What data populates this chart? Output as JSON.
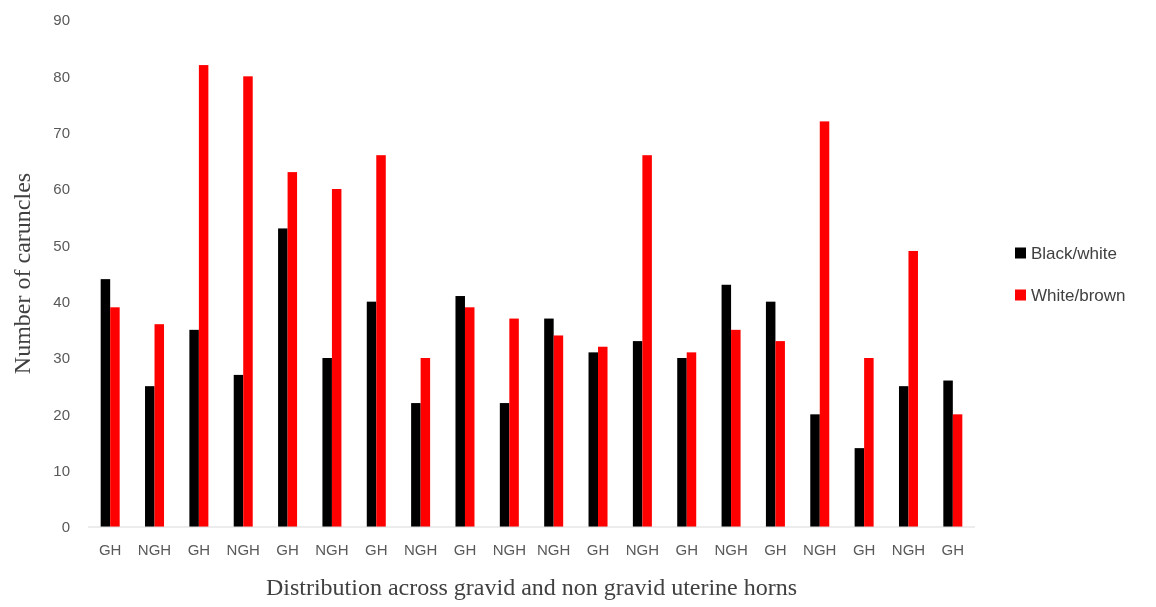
{
  "chart_data": {
    "type": "bar",
    "xlabel": "Distribution across gravid and non gravid uterine horns",
    "ylabel": "Number of caruncles",
    "categories": [
      "GH",
      "NGH",
      "GH",
      "NGH",
      "GH",
      "NGH",
      "GH",
      "NGH",
      "GH",
      "NGH",
      "NGH",
      "GH",
      "NGH",
      "GH",
      "NGH",
      "GH",
      "NGH",
      "GH",
      "NGH",
      "GH"
    ],
    "series": [
      {
        "name": "Black/white",
        "color": "#000000",
        "values": [
          44,
          25,
          35,
          27,
          53,
          30,
          40,
          22,
          41,
          22,
          37,
          31,
          33,
          30,
          43,
          40,
          20,
          14,
          25,
          26
        ]
      },
      {
        "name": "White/brown",
        "color": "#ff0000",
        "values": [
          39,
          36,
          82,
          80,
          63,
          60,
          66,
          30,
          39,
          37,
          34,
          32,
          66,
          31,
          35,
          33,
          72,
          30,
          49,
          20
        ]
      }
    ],
    "ylim": [
      0,
      90
    ],
    "yticks": [
      0,
      10,
      20,
      30,
      40,
      50,
      60,
      70,
      80,
      90
    ],
    "legend": "right",
    "grid": false
  }
}
